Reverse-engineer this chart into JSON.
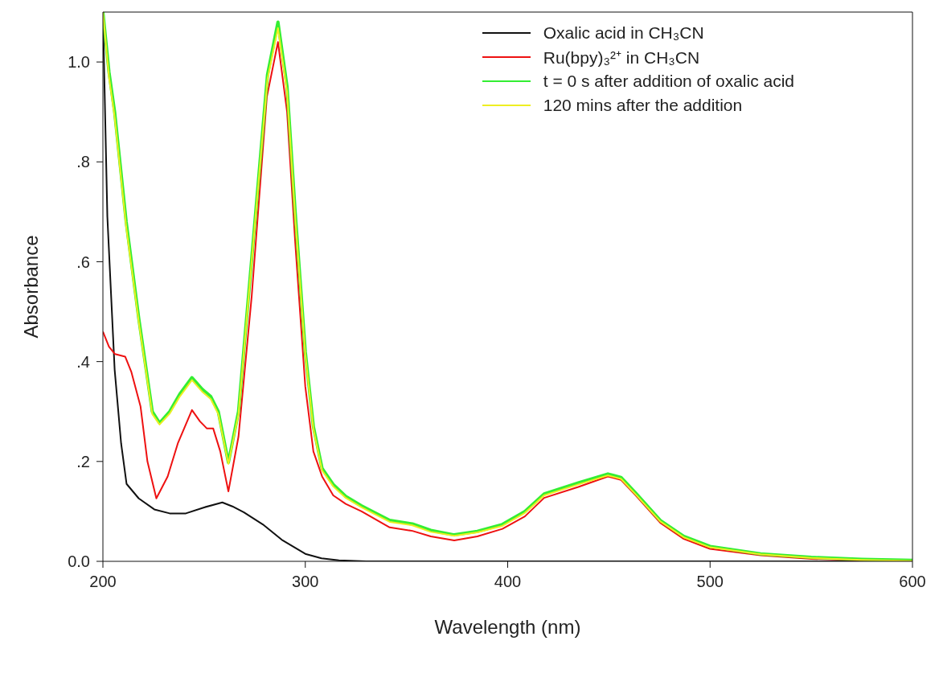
{
  "chart_data": {
    "type": "line",
    "xlabel": "Wavelength (nm)",
    "ylabel": "Absorbance",
    "xlim": [
      200,
      600
    ],
    "xticks": [
      200,
      300,
      400,
      500,
      600
    ],
    "ylim": [
      0,
      1.1
    ],
    "yticks": [
      {
        "value": 0,
        "label": "0.0"
      },
      {
        "value": 0.2,
        "label": ".2"
      },
      {
        "value": 0.4,
        "label": ".4"
      },
      {
        "value": 0.6,
        "label": ".6"
      },
      {
        "value": 0.8,
        "label": ".8"
      },
      {
        "value": 1.0,
        "label": "1.0"
      }
    ],
    "grid": false,
    "legend": "top right",
    "marker": "none",
    "line_style": "solid",
    "series": [
      {
        "name": "Oxalic acid in CH₃CN",
        "color": "#111111",
        "x": [
          200,
          202.2,
          205.8,
          209,
          211.7,
          217.7,
          225.4,
          233,
          241,
          250,
          259,
          264,
          269.7,
          279,
          288.8,
          300,
          308,
          316.6,
          330,
          400,
          500,
          600
        ],
        "values": [
          1.1,
          0.69,
          0.384,
          0.236,
          0.155,
          0.126,
          0.104,
          0.096,
          0.096,
          0.108,
          0.118,
          0.11,
          0.098,
          0.074,
          0.042,
          0.015,
          0.006,
          0.002,
          0,
          0,
          0,
          0
        ]
      },
      {
        "name": "Ru(bpy)₃²⁺ in CH₃CN",
        "color": "#ee1111",
        "x": [
          200,
          203,
          206,
          211,
          214,
          218.6,
          222,
          226.4,
          232,
          237,
          244,
          248,
          251.4,
          254.5,
          258,
          262,
          267,
          273.5,
          281,
          286.5,
          291,
          295,
          300,
          304,
          308.3,
          313.8,
          320,
          327.8,
          341.7,
          352.9,
          362,
          373.6,
          385,
          397.4,
          408.5,
          418,
          434.9,
          449.5,
          456,
          463,
          475.4,
          487,
          500,
          525,
          550,
          575,
          600
        ],
        "values": [
          0.46,
          0.43,
          0.415,
          0.41,
          0.38,
          0.31,
          0.2,
          0.126,
          0.17,
          0.236,
          0.303,
          0.28,
          0.266,
          0.266,
          0.22,
          0.14,
          0.25,
          0.53,
          0.93,
          1.04,
          0.9,
          0.64,
          0.35,
          0.22,
          0.17,
          0.132,
          0.115,
          0.1,
          0.068,
          0.061,
          0.05,
          0.042,
          0.05,
          0.065,
          0.09,
          0.127,
          0.149,
          0.17,
          0.163,
          0.133,
          0.077,
          0.045,
          0.025,
          0.012,
          0.005,
          0.002,
          0.001
        ]
      },
      {
        "name": "t = 0 s after addition of oxalic acid",
        "color": "#33ee33",
        "x": [
          200,
          203,
          205.8,
          211.5,
          217.7,
          224.4,
          228,
          233,
          238,
          244,
          249,
          253.3,
          257,
          262,
          267,
          273.5,
          281.3,
          286.5,
          291,
          295,
          300,
          304,
          308.3,
          313.8,
          320,
          327.8,
          341.7,
          352.9,
          362,
          373.6,
          385,
          397.4,
          408.5,
          418,
          434.9,
          449.5,
          456,
          463,
          475.4,
          487,
          500,
          525,
          550,
          575,
          600
        ],
        "values": [
          1.1,
          0.98,
          0.9,
          0.68,
          0.487,
          0.3,
          0.277,
          0.3,
          0.335,
          0.368,
          0.345,
          0.33,
          0.3,
          0.198,
          0.3,
          0.605,
          0.974,
          1.08,
          0.95,
          0.7,
          0.42,
          0.27,
          0.186,
          0.154,
          0.13,
          0.111,
          0.082,
          0.075,
          0.062,
          0.053,
          0.06,
          0.074,
          0.1,
          0.135,
          0.157,
          0.175,
          0.168,
          0.138,
          0.082,
          0.05,
          0.03,
          0.015,
          0.008,
          0.004,
          0.002
        ]
      },
      {
        "name": "120 mins after the addition",
        "color": "#eeee22",
        "x": [
          200,
          203,
          205.8,
          211.5,
          217.7,
          224.4,
          228,
          233,
          238,
          244,
          249,
          253.3,
          257,
          262,
          267,
          273.5,
          281.3,
          286.5,
          291,
          295,
          300,
          304,
          308.3,
          313.8,
          320,
          327.8,
          341.7,
          352.9,
          362,
          373.6,
          385,
          397.4,
          408.5,
          418,
          434.9,
          449.5,
          456,
          463,
          475.4,
          487,
          500,
          525,
          550,
          575,
          600
        ],
        "values": [
          1.1,
          0.97,
          0.89,
          0.67,
          0.48,
          0.295,
          0.274,
          0.296,
          0.33,
          0.363,
          0.34,
          0.325,
          0.295,
          0.195,
          0.295,
          0.6,
          0.965,
          1.068,
          0.94,
          0.69,
          0.415,
          0.265,
          0.182,
          0.15,
          0.127,
          0.108,
          0.079,
          0.072,
          0.059,
          0.051,
          0.058,
          0.071,
          0.097,
          0.132,
          0.154,
          0.172,
          0.165,
          0.135,
          0.08,
          0.048,
          0.028,
          0.014,
          0.007,
          0.003,
          0.001
        ]
      }
    ]
  }
}
